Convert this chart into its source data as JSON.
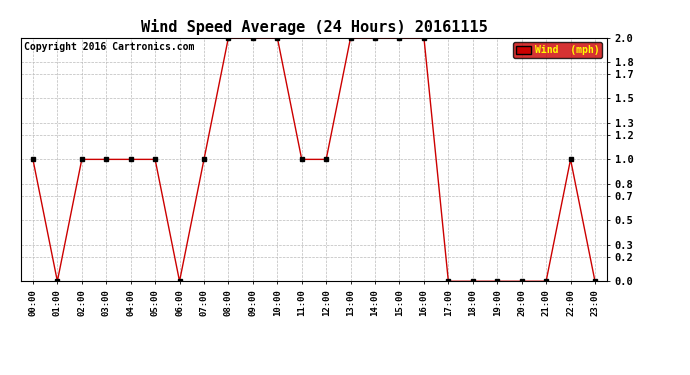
{
  "title": "Wind Speed Average (24 Hours) 20161115",
  "copyright": "Copyright 2016 Cartronics.com",
  "legend_label": "Wind  (mph)",
  "x_labels": [
    "00:00",
    "01:00",
    "02:00",
    "03:00",
    "04:00",
    "05:00",
    "06:00",
    "07:00",
    "08:00",
    "09:00",
    "10:00",
    "11:00",
    "12:00",
    "13:00",
    "14:00",
    "15:00",
    "16:00",
    "17:00",
    "18:00",
    "19:00",
    "20:00",
    "21:00",
    "22:00",
    "23:00"
  ],
  "y_values": [
    1.0,
    0.0,
    1.0,
    1.0,
    1.0,
    1.0,
    0.0,
    1.0,
    2.0,
    2.0,
    2.0,
    1.0,
    1.0,
    2.0,
    2.0,
    2.0,
    2.0,
    0.0,
    0.0,
    0.0,
    0.0,
    0.0,
    1.0,
    0.0
  ],
  "ylim": [
    0.0,
    2.0
  ],
  "yticks": [
    0.0,
    0.2,
    0.3,
    0.5,
    0.7,
    0.8,
    1.0,
    1.2,
    1.3,
    1.5,
    1.7,
    1.8,
    2.0
  ],
  "ytick_labels": [
    "0.0",
    "0.2",
    "0.3",
    "0.5",
    "0.7",
    "0.8",
    "1.0",
    "1.2",
    "1.3",
    "1.5",
    "1.7",
    "1.8",
    "2.0"
  ],
  "line_color": "#cc0000",
  "marker_color": "#000000",
  "background_color": "#ffffff",
  "grid_color": "#bbbbbb",
  "title_fontsize": 11,
  "copyright_fontsize": 7,
  "legend_bg": "#cc0000",
  "legend_text_color": "#ffff00",
  "fig_width": 6.9,
  "fig_height": 3.75,
  "dpi": 100
}
